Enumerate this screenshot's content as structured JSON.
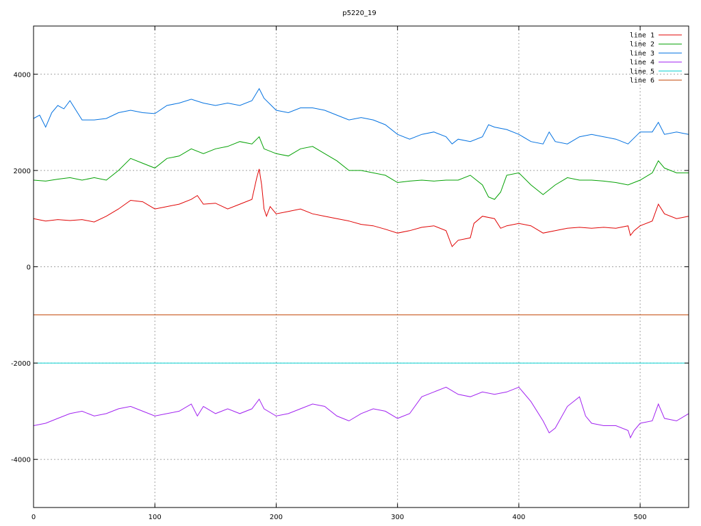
{
  "chart_data": {
    "type": "line",
    "title": "p5220_19",
    "xlabel": "",
    "ylabel": "",
    "xlim": [
      0,
      540
    ],
    "ylim": [
      -5000,
      5000
    ],
    "x_ticks": [
      0,
      100,
      200,
      300,
      400,
      500
    ],
    "y_ticks": [
      -4000,
      -2000,
      0,
      2000,
      4000
    ],
    "grid": true,
    "legend_position": "top-right",
    "series": [
      {
        "name": "line 1",
        "color": "#e00000",
        "x": [
          0,
          10,
          20,
          30,
          40,
          50,
          60,
          70,
          80,
          90,
          100,
          110,
          120,
          130,
          135,
          140,
          150,
          160,
          170,
          180,
          184,
          186,
          188,
          190,
          192,
          195,
          200,
          210,
          220,
          230,
          240,
          250,
          260,
          270,
          280,
          290,
          300,
          310,
          320,
          330,
          340,
          345,
          350,
          360,
          363,
          370,
          380,
          385,
          390,
          400,
          410,
          420,
          430,
          440,
          450,
          460,
          470,
          480,
          490,
          492,
          495,
          500,
          510,
          515,
          520,
          530,
          540
        ],
        "y": [
          1000,
          950,
          980,
          960,
          980,
          930,
          1050,
          1200,
          1380,
          1350,
          1200,
          1250,
          1300,
          1400,
          1480,
          1300,
          1320,
          1200,
          1300,
          1400,
          1850,
          2030,
          1700,
          1200,
          1050,
          1250,
          1100,
          1150,
          1200,
          1100,
          1050,
          1000,
          950,
          880,
          850,
          780,
          700,
          750,
          820,
          850,
          750,
          420,
          550,
          600,
          900,
          1050,
          1000,
          800,
          850,
          900,
          850,
          700,
          750,
          800,
          820,
          800,
          820,
          800,
          850,
          650,
          750,
          850,
          950,
          1300,
          1100,
          1000,
          1050
        ]
      },
      {
        "name": "line 2",
        "color": "#00a000",
        "x": [
          0,
          10,
          20,
          30,
          40,
          50,
          60,
          70,
          80,
          90,
          100,
          110,
          120,
          130,
          140,
          150,
          160,
          170,
          180,
          186,
          190,
          200,
          210,
          220,
          230,
          240,
          250,
          260,
          270,
          280,
          290,
          300,
          310,
          320,
          330,
          340,
          350,
          360,
          370,
          375,
          380,
          385,
          390,
          400,
          410,
          420,
          430,
          440,
          450,
          460,
          470,
          480,
          490,
          500,
          510,
          515,
          520,
          530,
          540
        ],
        "y": [
          1800,
          1780,
          1820,
          1850,
          1800,
          1850,
          1800,
          2000,
          2250,
          2150,
          2050,
          2250,
          2300,
          2450,
          2350,
          2450,
          2500,
          2600,
          2550,
          2700,
          2450,
          2350,
          2300,
          2450,
          2500,
          2350,
          2200,
          2000,
          2000,
          1950,
          1900,
          1750,
          1780,
          1800,
          1780,
          1800,
          1800,
          1900,
          1700,
          1450,
          1400,
          1550,
          1900,
          1950,
          1700,
          1500,
          1700,
          1850,
          1800,
          1800,
          1780,
          1750,
          1700,
          1800,
          1950,
          2200,
          2050,
          1950,
          1950
        ]
      },
      {
        "name": "line 3",
        "color": "#0070e0",
        "x": [
          0,
          5,
          10,
          15,
          20,
          25,
          30,
          40,
          50,
          60,
          70,
          80,
          90,
          100,
          110,
          120,
          130,
          140,
          150,
          160,
          170,
          180,
          186,
          190,
          200,
          210,
          220,
          230,
          240,
          250,
          260,
          270,
          280,
          290,
          300,
          310,
          320,
          330,
          340,
          345,
          350,
          360,
          370,
          375,
          380,
          390,
          400,
          410,
          420,
          425,
          430,
          440,
          450,
          460,
          470,
          480,
          490,
          500,
          510,
          515,
          520,
          530,
          540
        ],
        "y": [
          3080,
          3150,
          2900,
          3200,
          3350,
          3280,
          3450,
          3050,
          3050,
          3080,
          3200,
          3250,
          3200,
          3180,
          3350,
          3400,
          3480,
          3400,
          3350,
          3400,
          3350,
          3450,
          3700,
          3500,
          3250,
          3200,
          3300,
          3300,
          3250,
          3150,
          3050,
          3100,
          3050,
          2950,
          2750,
          2650,
          2750,
          2800,
          2700,
          2550,
          2650,
          2600,
          2700,
          2950,
          2900,
          2850,
          2750,
          2600,
          2550,
          2800,
          2600,
          2550,
          2700,
          2750,
          2700,
          2650,
          2550,
          2800,
          2800,
          3000,
          2750,
          2800,
          2750
        ]
      },
      {
        "name": "line 4",
        "color": "#a020f0",
        "x": [
          0,
          10,
          20,
          30,
          40,
          50,
          60,
          70,
          80,
          90,
          100,
          110,
          120,
          130,
          135,
          140,
          150,
          160,
          170,
          180,
          186,
          190,
          200,
          210,
          220,
          230,
          240,
          250,
          260,
          270,
          280,
          290,
          300,
          310,
          320,
          330,
          340,
          350,
          360,
          370,
          380,
          390,
          400,
          410,
          420,
          425,
          430,
          440,
          450,
          455,
          460,
          470,
          480,
          490,
          492,
          495,
          500,
          510,
          515,
          520,
          530,
          540
        ],
        "y": [
          -3300,
          -3250,
          -3150,
          -3050,
          -3000,
          -3100,
          -3050,
          -2950,
          -2900,
          -3000,
          -3100,
          -3050,
          -3000,
          -2850,
          -3100,
          -2900,
          -3050,
          -2950,
          -3050,
          -2950,
          -2750,
          -2950,
          -3100,
          -3050,
          -2950,
          -2850,
          -2900,
          -3100,
          -3200,
          -3050,
          -2950,
          -3000,
          -3150,
          -3050,
          -2700,
          -2600,
          -2500,
          -2650,
          -2700,
          -2600,
          -2650,
          -2600,
          -2500,
          -2800,
          -3200,
          -3450,
          -3350,
          -2900,
          -2700,
          -3100,
          -3250,
          -3300,
          -3300,
          -3400,
          -3550,
          -3400,
          -3250,
          -3200,
          -2850,
          -3150,
          -3200,
          -3050
        ]
      },
      {
        "name": "line 5",
        "color": "#00d0d0",
        "x": [
          0,
          540
        ],
        "y": [
          -2000,
          -2000
        ]
      },
      {
        "name": "line 6",
        "color": "#c04000",
        "x": [
          0,
          540
        ],
        "y": [
          -1000,
          -1000
        ]
      }
    ]
  }
}
